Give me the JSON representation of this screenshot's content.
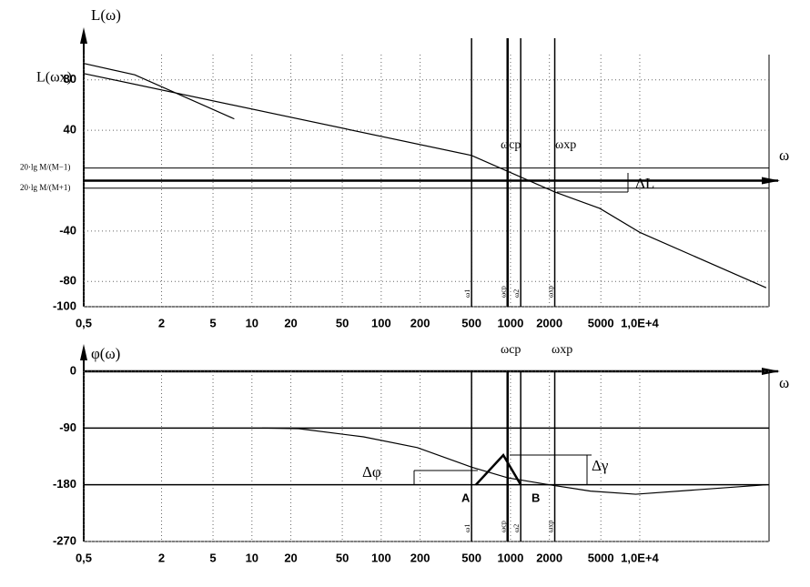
{
  "chart_data": [
    {
      "type": "line",
      "y_label": "L(ω)",
      "x_label": "ω",
      "y_special_label": "L(ωx)",
      "log_x": true,
      "grid": true,
      "xlim": [
        0.5,
        100000
      ],
      "ylim": [
        -100,
        100
      ],
      "xticks": [
        {
          "value": 0.5,
          "label": "0,5"
        },
        2,
        5,
        10,
        20,
        50,
        100,
        200,
        500,
        1000,
        2000,
        5000,
        {
          "value": 10000,
          "label": "1,0E+4"
        }
      ],
      "yticks": [
        80,
        40,
        -40,
        -80,
        -100
      ],
      "hlines": [
        {
          "value": 10,
          "label": "20·lg M/(M−1)"
        },
        {
          "value": -6,
          "label": "20·lg M/(M+1)"
        }
      ],
      "vlines": [
        {
          "value": 500,
          "label": "ω1"
        },
        {
          "value": 950,
          "label": "ωcp"
        },
        {
          "value": 1200,
          "label": "ω2"
        },
        {
          "value": 2200,
          "label": "ωxp"
        }
      ],
      "series": [
        {
          "color": "#000000",
          "x": [
            0.5,
            1.24,
            7.3
          ],
          "values": [
            93,
            84,
            49
          ]
        },
        {
          "color": "#000000",
          "x": [
            0.5,
            500,
            2200,
            4900,
            10000,
            95000
          ],
          "values": [
            85,
            20,
            -9,
            -22,
            -41,
            -85
          ]
        }
      ],
      "annotations": [
        "ωcp",
        "ωxp",
        "ΔL"
      ]
    },
    {
      "type": "line",
      "y_label": "φ(ω)",
      "x_label": "ω",
      "log_x": true,
      "grid": true,
      "xlim": [
        0.5,
        100000
      ],
      "ylim": [
        -270,
        0
      ],
      "xticks": [
        {
          "value": 0.5,
          "label": "0,5"
        },
        2,
        5,
        10,
        20,
        50,
        100,
        200,
        500,
        1000,
        2000,
        5000,
        {
          "value": 10000,
          "label": "1,0E+4"
        }
      ],
      "yticks": [
        0,
        -90,
        -180,
        -270
      ],
      "vlines": [
        {
          "value": 500,
          "label": "ω1"
        },
        {
          "value": 950,
          "label": "ωcp"
        },
        {
          "value": 1200,
          "label": "ω2"
        },
        {
          "value": 2200,
          "label": "ωxp"
        }
      ],
      "series": [
        {
          "color": "#000000",
          "x": [
            12,
            23,
            73,
            190,
            500,
            955,
            2000,
            4150,
            9300,
            95000
          ],
          "values": [
            -90,
            -91,
            -104,
            -121,
            -152,
            -169,
            -180,
            -190,
            -195,
            -180
          ]
        },
        {
          "color": "#000000",
          "x": [
            540,
            880,
            1200
          ],
          "values": [
            -180,
            -133,
            -180
          ]
        }
      ],
      "annotations": [
        "ωcp",
        "ωxp",
        "Δφ",
        "Δγ",
        "A",
        "B"
      ]
    }
  ]
}
